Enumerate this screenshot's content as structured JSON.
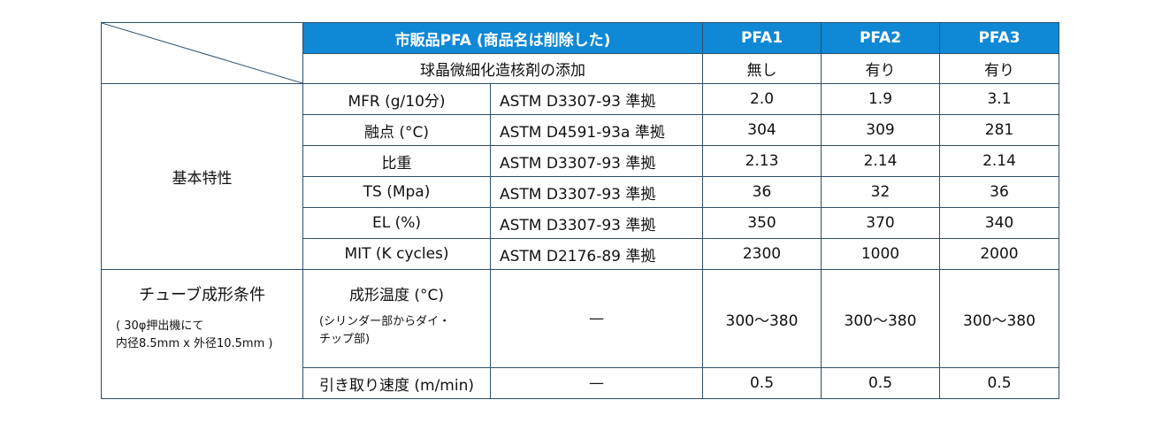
{
  "header": {
    "product_label": "市販品PFA (商品名は削除した)",
    "columns": [
      "PFA1",
      "PFA2",
      "PFA3"
    ]
  },
  "additive_row": {
    "label": "球晶微細化造核剤の添加",
    "values": [
      "無し",
      "有り",
      "有り"
    ]
  },
  "basic_section": {
    "label": "基本特性",
    "rows": [
      {
        "property": "MFR (g/10分)",
        "standard": "ASTM D3307-93 準拠",
        "values": [
          "2.0",
          "1.9",
          "3.1"
        ]
      },
      {
        "property": "融点 (°C)",
        "standard": "ASTM D4591-93a 準拠",
        "values": [
          "304",
          "309",
          "281"
        ]
      },
      {
        "property": "比重",
        "standard": "ASTM D3307-93 準拠",
        "values": [
          "2.13",
          "2.14",
          "2.14"
        ]
      },
      {
        "property": "TS (Mpa)",
        "standard": "ASTM D3307-93 準拠",
        "values": [
          "36",
          "32",
          "36"
        ]
      },
      {
        "property": "EL (%)",
        "standard": "ASTM D3307-93 準拠",
        "values": [
          "350",
          "370",
          "340"
        ]
      },
      {
        "property": "MIT (K cycles)",
        "standard": "ASTM D2176-89 準拠",
        "values": [
          "2300",
          "1000",
          "2000"
        ]
      }
    ]
  },
  "tube_section": {
    "label": "チューブ成形条件",
    "note_line1": "( 30φ押出機にて",
    "note_line2": "内径8.5mm x 外径10.5mm )",
    "rows": [
      {
        "property": "成形温度 (°C)",
        "sub_line1": "(シリンダー部からダイ・",
        "sub_line2": "チップ部)",
        "standard": "—",
        "values": [
          "300〜380",
          "300〜380",
          "300〜380"
        ]
      },
      {
        "property": "引き取り速度 (m/min)",
        "standard": "—",
        "values": [
          "0.5",
          "0.5",
          "0.5"
        ]
      }
    ]
  },
  "colors": {
    "header_bg": "#0f88d6",
    "border": "#2d4f6b"
  }
}
